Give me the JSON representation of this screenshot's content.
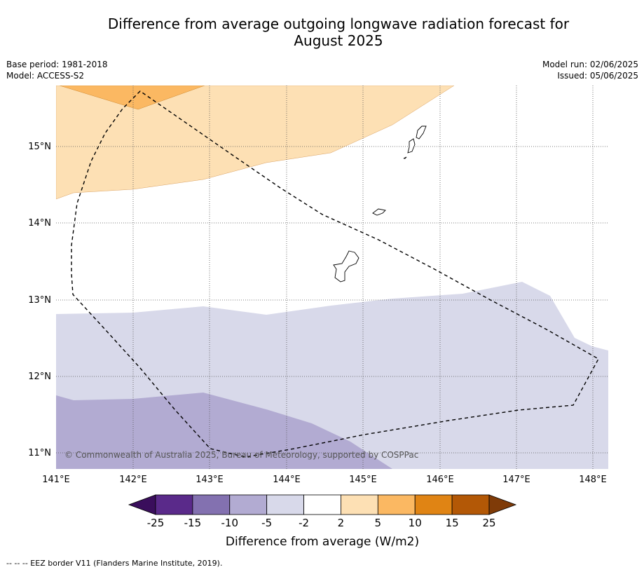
{
  "title_line1": "Difference from average outgoing longwave radiation forecast for",
  "title_line2": "August 2025",
  "meta_left": {
    "base_period": "Base period: 1981-2018",
    "model": "Model: ACCESS-S2"
  },
  "meta_right": {
    "model_run": "Model run: 02/06/2025",
    "issued": "Issued: 05/06/2025"
  },
  "copyright": "© Commonwealth of Australia 2025, Bureau of Meteorology, supported by COSPPac",
  "footnote": "-- -- -- EEZ border V11 (Flanders Marine Institute, 2019).",
  "lon_ticks": [
    "141°E",
    "142°E",
    "143°E",
    "144°E",
    "145°E",
    "146°E",
    "147°E",
    "148°E"
  ],
  "lat_ticks": [
    "15°N",
    "14°N",
    "13°N",
    "12°N",
    "11°N"
  ],
  "colorbar": {
    "title": "Difference from average (W/m2)",
    "bounds": [
      "-25",
      "-15",
      "-10",
      "-5",
      "-2",
      "2",
      "5",
      "10",
      "15",
      "25"
    ],
    "colors": {
      "below_min": "#3a0e5c",
      "bins": [
        "#5a2a8a",
        "#8371b0",
        "#b2abd2",
        "#d8d9ea",
        "#ffffff",
        "#fde0b4",
        "#fbb862",
        "#e08414",
        "#b35806"
      ],
      "above_max": "#7f3b08"
    }
  }
}
